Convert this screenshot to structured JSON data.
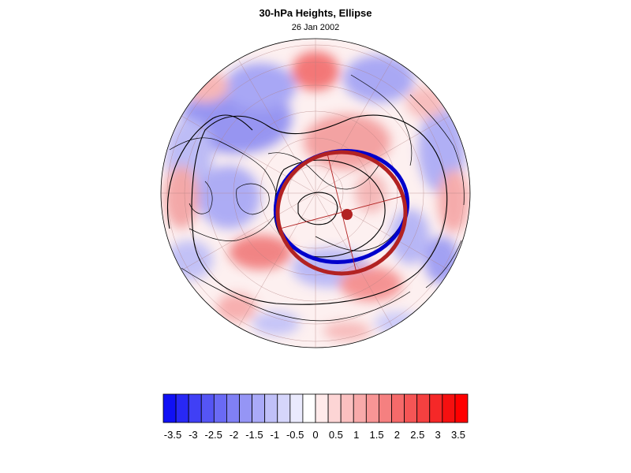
{
  "header": {
    "title": "30-hPa Heights, Ellipse",
    "date": "26 Jan 2002"
  },
  "legend": {
    "labels": [
      "-3.5",
      "-3",
      "-2.5",
      "-2",
      "-1.5",
      "-1",
      "-0.5",
      "0",
      "0.5",
      "1",
      "1.5",
      "2",
      "2.5",
      "3",
      "3.5"
    ],
    "colors": [
      "#1010f5",
      "#2828f5",
      "#4040f5",
      "#5555f5",
      "#6a6af5",
      "#8080f5",
      "#9595f5",
      "#aaaaf8",
      "#c0c0f8",
      "#d5d5fb",
      "#eaeafd",
      "#ffffff",
      "#ffeaea",
      "#fdd5d5",
      "#fbc0c0",
      "#f8aaaa",
      "#f89595",
      "#f58080",
      "#f56a6a",
      "#f55555",
      "#f54040",
      "#f52828",
      "#f51010",
      "#ff0000"
    ]
  },
  "map": {
    "projection": "north-polar-orthographic",
    "colors": {
      "ellipse_red": "#b22222",
      "ellipse_blue": "#0000cc",
      "center_dot": "#b22222",
      "contour": "#000000"
    }
  }
}
